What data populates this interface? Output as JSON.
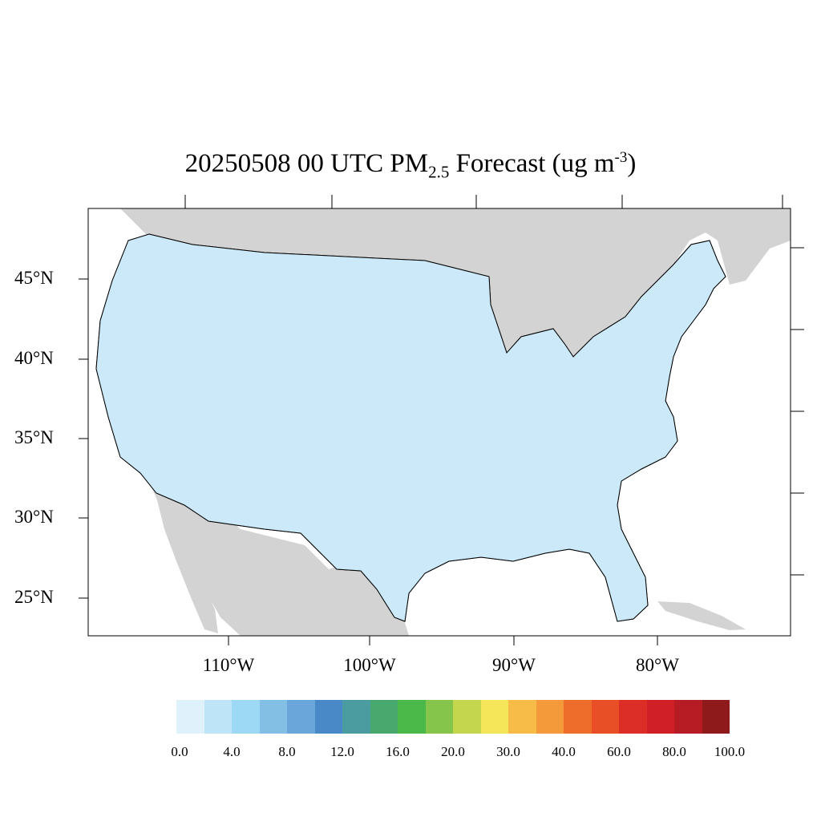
{
  "title": {
    "prefix": "20250508 00 UTC PM",
    "subscript": "2.5",
    "suffix": " Forecast (ug m",
    "superscript": "-3",
    "close": ")"
  },
  "map": {
    "ocean_color": "#ffffff",
    "land_color": "#d3d3d3",
    "border_color": "#000000",
    "lat_labels": [
      "45°N",
      "40°N",
      "35°N",
      "30°N",
      "25°N"
    ],
    "lon_labels": [
      "110°W",
      "100°W",
      "90°W",
      "80°W"
    ]
  },
  "colorbar": {
    "colors": [
      "#dff1fb",
      "#bde4f7",
      "#9dd8f4",
      "#83bfe5",
      "#6aa6d9",
      "#4a89c8",
      "#4a9ca0",
      "#49a86d",
      "#4bb84a",
      "#85c54b",
      "#c3d64e",
      "#f5e659",
      "#f6bc47",
      "#f59a3a",
      "#ef6d2b",
      "#e94f27",
      "#dc2e26",
      "#d01f26",
      "#b71b23",
      "#8e1a1b"
    ],
    "tick_labels": [
      "0.0",
      "4.0",
      "8.0",
      "12.0",
      "16.0",
      "20.0",
      "30.0",
      "40.0",
      "60.0",
      "80.0",
      "100.0"
    ]
  }
}
